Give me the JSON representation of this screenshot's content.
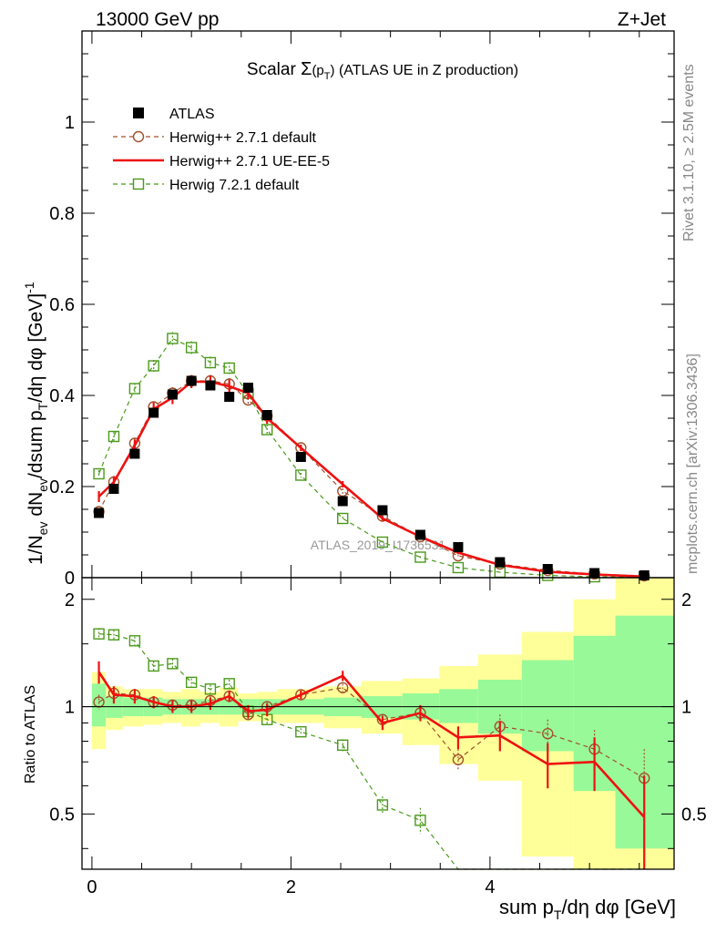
{
  "header": {
    "energy_label": "13000 GeV pp",
    "process_label": "Z+Jet",
    "title_prefix": "Scalar ",
    "title_sigma": "Σ",
    "title_arg": "(p",
    "title_arg_sub": "T",
    "title_arg_close": ")",
    "title_suffix": " (ATLAS UE in Z production)"
  },
  "side_text": {
    "rivet": "Rivet 3.1.10, ≥ 2.5M events",
    "mcplots": "mcplots.cern.ch [arXiv:1306.3436]"
  },
  "watermark": "ATLAS_2019_I1736531",
  "axes": {
    "ylabel_main": "1/N_ev dN_ev/dsum p_T/dη dφ [GeV]^-1",
    "ylabel_main_parts": [
      "1/N",
      "ev",
      " dN",
      "ev",
      "/dsum p",
      "T",
      "/dη dφ  [GeV]",
      "-1"
    ],
    "ylabel_ratio": "Ratio to ATLAS",
    "xlabel_parts": [
      "sum p",
      "T",
      "/dη dφ [GeV]"
    ],
    "main_yticks": [
      "0",
      "0.2",
      "0.4",
      "0.6",
      "0.8",
      "1"
    ],
    "ratio_yticks": [
      "0.5",
      "1",
      "2"
    ],
    "xticks": [
      "0",
      "2",
      "4"
    ]
  },
  "legend": [
    {
      "label": "ATLAS",
      "color": "#000000",
      "marker": "filled-square"
    },
    {
      "label": "Herwig++ 2.7.1 default",
      "color": "#a0522d",
      "marker": "open-circle"
    },
    {
      "label": "Herwig++ 2.7.1 UE-EE-5",
      "color": "#ee1111",
      "marker": "solid-line"
    },
    {
      "label": "Herwig 7.2.1 default",
      "color": "#4a9a1a",
      "marker": "open-square"
    }
  ],
  "chart_data": {
    "type": "scatter",
    "xlim": [
      -0.1,
      5.85
    ],
    "ylim_main": [
      0,
      1.2
    ],
    "ylim_ratio": [
      0.35,
      2.3
    ],
    "ratio_log_scale": true,
    "x": [
      0.07,
      0.22,
      0.43,
      0.62,
      0.81,
      1.0,
      1.19,
      1.38,
      1.57,
      1.76,
      2.1,
      2.52,
      2.92,
      3.3,
      3.68,
      4.1,
      4.58,
      5.05,
      5.55
    ],
    "bins": [
      [
        0.0,
        0.14
      ],
      [
        0.14,
        0.31
      ],
      [
        0.31,
        0.52
      ],
      [
        0.52,
        0.71
      ],
      [
        0.71,
        0.9
      ],
      [
        0.9,
        1.09
      ],
      [
        1.09,
        1.28
      ],
      [
        1.28,
        1.47
      ],
      [
        1.47,
        1.66
      ],
      [
        1.66,
        1.86
      ],
      [
        1.86,
        2.33
      ],
      [
        2.33,
        2.71
      ],
      [
        2.71,
        3.12
      ],
      [
        3.12,
        3.49
      ],
      [
        3.49,
        3.88
      ],
      [
        3.88,
        4.32
      ],
      [
        4.32,
        4.84
      ],
      [
        4.84,
        5.26
      ],
      [
        5.26,
        5.85
      ]
    ],
    "series": [
      {
        "name": "ATLAS",
        "y": [
          0.142,
          0.195,
          0.272,
          0.362,
          0.402,
          0.432,
          0.422,
          0.397,
          0.417,
          0.357,
          0.265,
          0.168,
          0.148,
          0.094,
          0.067,
          0.034,
          0.019,
          0.01,
          0.005
        ],
        "err": [
          0.003,
          0.003,
          0.003,
          0.003,
          0.003,
          0.003,
          0.003,
          0.003,
          0.003,
          0.003,
          0.003,
          0.003,
          0.003,
          0.003,
          0.002,
          0.002,
          0.001,
          0.001,
          0.001
        ]
      },
      {
        "name": "Herwig++ 2.7.1 default",
        "y": [
          0.145,
          0.21,
          0.295,
          0.375,
          0.405,
          0.432,
          0.432,
          0.425,
          0.39,
          0.355,
          0.285,
          0.19,
          0.135,
          0.09,
          0.048,
          0.03,
          0.016,
          0.008,
          0.004
        ],
        "err": [
          0.008,
          0.01,
          0.011,
          0.012,
          0.013,
          0.013,
          0.013,
          0.013,
          0.012,
          0.011,
          0.006,
          0.006,
          0.004,
          0.003,
          0.003,
          0.002,
          0.002,
          0.001,
          0.001
        ]
      },
      {
        "name": "Herwig++ 2.7.1 UE-EE-5",
        "y": [
          0.178,
          0.21,
          0.29,
          0.37,
          0.395,
          0.43,
          0.43,
          0.42,
          0.405,
          0.35,
          0.285,
          0.205,
          0.13,
          0.09,
          0.055,
          0.028,
          0.013,
          0.007,
          0.0025
        ],
        "err": [
          0.012,
          0.013,
          0.013,
          0.014,
          0.014,
          0.014,
          0.014,
          0.014,
          0.013,
          0.012,
          0.007,
          0.007,
          0.005,
          0.004,
          0.003,
          0.002,
          0.002,
          0.001,
          0.001
        ]
      },
      {
        "name": "Herwig 7.2.1 default",
        "y": [
          0.228,
          0.31,
          0.415,
          0.465,
          0.525,
          0.505,
          0.472,
          0.46,
          0.405,
          0.325,
          0.225,
          0.13,
          0.078,
          0.045,
          0.022,
          0.012,
          0.005,
          0.002,
          0.001
        ],
        "err": [
          0.008,
          0.01,
          0.012,
          0.013,
          0.014,
          0.014,
          0.013,
          0.013,
          0.012,
          0.011,
          0.005,
          0.004,
          0.003,
          0.002,
          0.002,
          0.001,
          0.001,
          0.001,
          0.001
        ]
      }
    ],
    "ratio_series": [
      {
        "name": "Herwig++ 2.7.1 default",
        "y": [
          1.03,
          1.09,
          1.08,
          1.03,
          1.01,
          1.01,
          1.04,
          1.07,
          0.95,
          1.0,
          1.08,
          1.13,
          0.92,
          0.96,
          0.71,
          0.88,
          0.84,
          0.76,
          0.63
        ],
        "err": [
          0.05,
          0.05,
          0.04,
          0.03,
          0.03,
          0.03,
          0.03,
          0.03,
          0.03,
          0.03,
          0.02,
          0.03,
          0.03,
          0.04,
          0.05,
          0.07,
          0.08,
          0.1,
          0.13
        ]
      },
      {
        "name": "Herwig++ 2.7.1 UE-EE-5",
        "y": [
          1.25,
          1.08,
          1.07,
          1.03,
          1.0,
          1.0,
          1.02,
          1.07,
          0.97,
          0.98,
          1.08,
          1.22,
          0.9,
          0.96,
          0.82,
          0.83,
          0.69,
          0.7,
          0.49
        ],
        "err": [
          0.09,
          0.06,
          0.05,
          0.04,
          0.04,
          0.04,
          0.04,
          0.04,
          0.04,
          0.04,
          0.03,
          0.04,
          0.04,
          0.05,
          0.06,
          0.08,
          0.1,
          0.12,
          0.15
        ]
      },
      {
        "name": "Herwig 7.2.1 default",
        "y": [
          1.6,
          1.59,
          1.53,
          1.3,
          1.32,
          1.17,
          1.12,
          1.16,
          0.97,
          0.92,
          0.85,
          0.78,
          0.53,
          0.48,
          0.33,
          0.3,
          0.26,
          0.2,
          0.2
        ],
        "err": [
          0.06,
          0.05,
          0.04,
          0.04,
          0.04,
          0.03,
          0.03,
          0.03,
          0.03,
          0.03,
          0.02,
          0.03,
          0.03,
          0.04,
          0.05,
          0.06,
          0.07,
          0.08,
          0.1
        ]
      }
    ],
    "ratio_bands": {
      "green_low": [
        0.88,
        0.93,
        0.94,
        0.94,
        0.95,
        0.95,
        0.95,
        0.95,
        0.95,
        0.95,
        0.95,
        0.94,
        0.93,
        0.92,
        0.9,
        0.84,
        0.75,
        0.58,
        0.4
      ],
      "green_high": [
        1.16,
        1.07,
        1.06,
        1.06,
        1.05,
        1.05,
        1.05,
        1.05,
        1.05,
        1.05,
        1.05,
        1.06,
        1.07,
        1.09,
        1.12,
        1.19,
        1.35,
        1.58,
        1.8
      ],
      "yellow_low": [
        0.76,
        0.86,
        0.88,
        0.89,
        0.9,
        0.88,
        0.9,
        0.88,
        0.91,
        0.91,
        0.9,
        0.87,
        0.84,
        0.78,
        0.69,
        0.62,
        0.38,
        0.35,
        0.35
      ],
      "yellow_high": [
        1.25,
        1.14,
        1.12,
        1.12,
        1.1,
        1.12,
        1.1,
        1.13,
        1.09,
        1.1,
        1.12,
        1.14,
        1.18,
        1.2,
        1.3,
        1.4,
        1.62,
        2.0,
        2.3
      ]
    }
  },
  "colors": {
    "data": "#000000",
    "herwigpp_default": "#a0522d",
    "herwigpp_ueee5": "#ee1111",
    "herwig7": "#4a9a1a",
    "band_green": "#98f998",
    "band_yellow": "#ffff99"
  }
}
